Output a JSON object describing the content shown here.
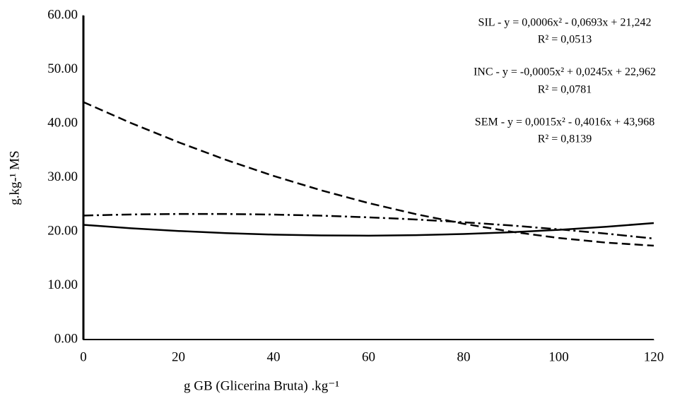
{
  "chart_data": {
    "type": "line",
    "x_label": "g GB (Glicerina Bruta) .kg⁻¹",
    "y_label": "g.kg-¹ MS",
    "x": [
      0,
      10,
      20,
      30,
      40,
      50,
      60,
      70,
      80,
      90,
      100,
      110,
      120
    ],
    "series": [
      {
        "color": "#000000",
        "dash": "solid",
        "values": [
          21.24,
          20.61,
          20.1,
          19.7,
          19.43,
          19.28,
          19.24,
          19.33,
          19.54,
          19.87,
          20.31,
          20.88,
          21.57
        ]
      },
      {
        "color": "#000000",
        "dash": "dashdot",
        "values": [
          22.96,
          23.16,
          23.25,
          23.25,
          23.14,
          22.94,
          22.63,
          22.23,
          21.72,
          21.12,
          20.41,
          19.61,
          18.7
        ]
      },
      {
        "color": "#000000",
        "dash": "dashed",
        "values": [
          43.97,
          40.1,
          36.54,
          33.27,
          30.3,
          27.64,
          25.27,
          23.21,
          21.44,
          19.97,
          18.81,
          17.94,
          17.38
        ]
      }
    ],
    "annotations": [
      "SIL - y = 0,0006x² - 0,0693x + 21,242",
      "R² = 0,0513",
      "INC - y = -0,0005x² + 0,0245x + 22,962",
      "R² = 0,0781",
      "SEM - y = 0,0015x² - 0,4016x + 43,968",
      "R² = 0,8139"
    ],
    "xlim": [
      0,
      120
    ],
    "xticks": [
      0,
      20,
      40,
      60,
      80,
      100,
      120
    ],
    "ylim": [
      0,
      60
    ],
    "yticks": [
      {
        "value": 0,
        "label": "0.00"
      },
      {
        "value": 10,
        "label": "10.00"
      },
      {
        "value": 20,
        "label": "20.00"
      },
      {
        "value": 30,
        "label": "30.00"
      },
      {
        "value": 40,
        "label": "40.00"
      },
      {
        "value": 50,
        "label": "50.00"
      },
      {
        "value": 60,
        "label": "60.00"
      }
    ],
    "grid": false
  }
}
